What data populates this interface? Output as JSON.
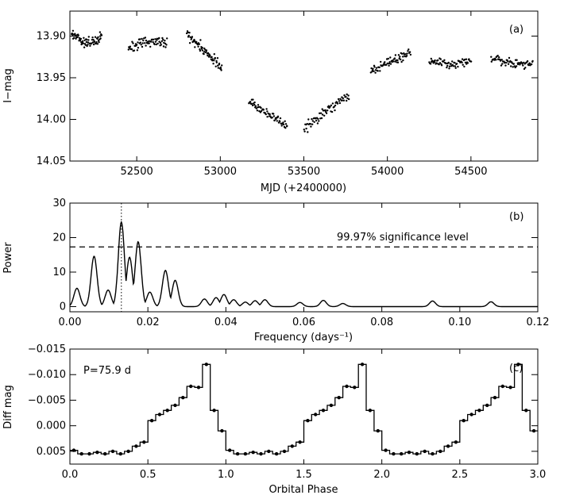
{
  "chart_data": [
    {
      "panel_label": "(a)",
      "type": "scatter",
      "xlabel": "MJD (+2400000)",
      "ylabel": "I−mag",
      "xlim": [
        52100,
        54900
      ],
      "ylim": [
        13.87,
        14.05
      ],
      "y_inverted": true,
      "x_ticks": [
        52500,
        53000,
        53500,
        54000,
        54500
      ],
      "x_tick_labels": [
        "52500",
        "53000",
        "53500",
        "54000",
        "54500"
      ],
      "y_ticks": [
        13.9,
        13.95,
        14.0,
        14.05
      ],
      "y_tick_labels": [
        "13.90",
        "13.95",
        "14.00",
        "14.05"
      ],
      "seasons": [
        {
          "x_start": 52110,
          "x_end": 52290,
          "mag_start": 13.895,
          "mag_end": 13.9,
          "dip": 0.01,
          "scatter": 0.006
        },
        {
          "x_start": 52450,
          "x_end": 52680,
          "mag_start": 13.915,
          "mag_end": 13.908,
          "dip": -0.004,
          "scatter": 0.006
        },
        {
          "x_start": 52800,
          "x_end": 53010,
          "mag_start": 13.896,
          "mag_end": 13.94,
          "dip": 0.0,
          "scatter": 0.007
        },
        {
          "x_start": 53170,
          "x_end": 53400,
          "mag_start": 13.978,
          "mag_end": 14.008,
          "dip": 0.0,
          "scatter": 0.005
        },
        {
          "x_start": 53500,
          "x_end": 53770,
          "mag_start": 14.012,
          "mag_end": 13.97,
          "dip": 0.0,
          "scatter": 0.006
        },
        {
          "x_start": 53900,
          "x_end": 54140,
          "mag_start": 13.942,
          "mag_end": 13.92,
          "dip": 0.0,
          "scatter": 0.005
        },
        {
          "x_start": 54250,
          "x_end": 54500,
          "mag_start": 13.93,
          "mag_end": 13.93,
          "dip": 0.003,
          "scatter": 0.005
        },
        {
          "x_start": 54620,
          "x_end": 54870,
          "mag_start": 13.927,
          "mag_end": 13.933,
          "dip": 0.002,
          "scatter": 0.005
        }
      ]
    },
    {
      "panel_label": "(b)",
      "type": "line",
      "xlabel": "Frequency (days⁻¹)",
      "ylabel": "Power",
      "xlim": [
        0.0,
        0.12
      ],
      "ylim": [
        -1.5,
        30
      ],
      "x_ticks": [
        0.0,
        0.02,
        0.04,
        0.06,
        0.08,
        0.1,
        0.12
      ],
      "x_tick_labels": [
        "0.00",
        "0.02",
        "0.04",
        "0.06",
        "0.08",
        "0.10",
        "0.12"
      ],
      "y_ticks": [
        0,
        10,
        20,
        30
      ],
      "y_tick_labels": [
        "0",
        "10",
        "20",
        "30"
      ],
      "significance_level": 17.3,
      "significance_label": "99.97% significance level",
      "peak_frequency": 0.0132,
      "peaks": [
        {
          "f": 0.0018,
          "p": 5.3
        },
        {
          "f": 0.0062,
          "p": 14.6
        },
        {
          "f": 0.0098,
          "p": 4.8
        },
        {
          "f": 0.0132,
          "p": 24.5
        },
        {
          "f": 0.0153,
          "p": 14.3
        },
        {
          "f": 0.0175,
          "p": 18.8
        },
        {
          "f": 0.0205,
          "p": 4.2
        },
        {
          "f": 0.0245,
          "p": 10.5
        },
        {
          "f": 0.027,
          "p": 7.6
        },
        {
          "f": 0.0345,
          "p": 2.2
        },
        {
          "f": 0.0375,
          "p": 2.6
        },
        {
          "f": 0.0395,
          "p": 3.5
        },
        {
          "f": 0.042,
          "p": 2.0
        },
        {
          "f": 0.045,
          "p": 1.3
        },
        {
          "f": 0.0475,
          "p": 1.7
        },
        {
          "f": 0.05,
          "p": 2.0
        },
        {
          "f": 0.059,
          "p": 1.2
        },
        {
          "f": 0.065,
          "p": 1.8
        },
        {
          "f": 0.07,
          "p": 0.9
        },
        {
          "f": 0.093,
          "p": 1.6
        },
        {
          "f": 0.108,
          "p": 1.4
        }
      ]
    },
    {
      "panel_label": "(c)",
      "type": "line",
      "annotation": "P=75.9 d",
      "xlabel": "Orbital Phase",
      "ylabel": "Diff mag",
      "xlim": [
        0.0,
        3.0
      ],
      "ylim": [
        -0.015,
        0.0075
      ],
      "y_inverted": true,
      "x_ticks": [
        0.0,
        0.5,
        1.0,
        1.5,
        2.0,
        2.5,
        3.0
      ],
      "x_tick_labels": [
        "0.0",
        "0.5",
        "1.0",
        "1.5",
        "2.0",
        "2.5",
        "3.0"
      ],
      "y_ticks": [
        -0.015,
        -0.01,
        -0.005,
        0.0,
        0.005
      ],
      "y_tick_labels": [
        "−0.015",
        "−0.010",
        "−0.005",
        "0.000",
        "0.005"
      ],
      "bin_width": 0.05,
      "bin_centers": [
        0.025,
        0.075,
        0.125,
        0.175,
        0.225,
        0.275,
        0.325,
        0.375,
        0.425,
        0.475,
        0.525,
        0.575,
        0.625,
        0.675,
        0.725,
        0.775,
        0.825,
        0.875,
        0.925,
        0.975
      ],
      "values": [
        0.0048,
        0.0055,
        0.0055,
        0.0052,
        0.0055,
        0.005,
        0.0055,
        0.005,
        0.004,
        0.0032,
        -0.001,
        -0.0022,
        -0.003,
        -0.004,
        -0.0055,
        -0.0077,
        -0.0075,
        -0.012,
        -0.003,
        0.001
      ]
    }
  ]
}
